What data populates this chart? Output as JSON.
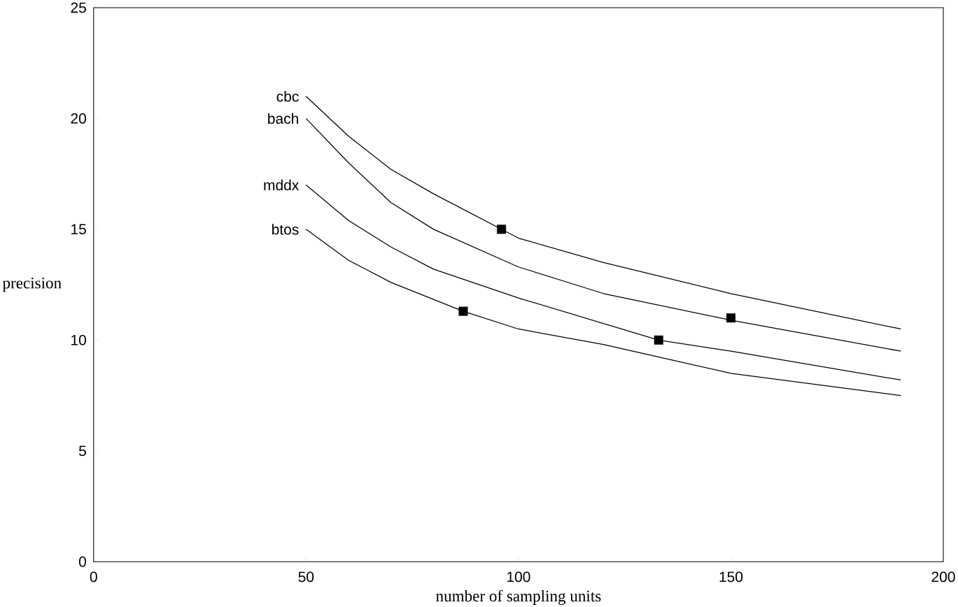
{
  "chart_data": {
    "type": "line",
    "xlabel": "number of sampling units",
    "ylabel": "precision",
    "xlim": [
      0,
      200
    ],
    "ylim": [
      0,
      25
    ],
    "xticks": [
      0,
      50,
      100,
      150,
      200
    ],
    "yticks": [
      0,
      5,
      10,
      15,
      20,
      25
    ],
    "grid": false,
    "marker": "none",
    "line_style": "solid",
    "series": [
      {
        "name": "cbc",
        "color": "#000000",
        "x": [
          50,
          60,
          70,
          80,
          100,
          120,
          150,
          190
        ],
        "values": [
          21.0,
          19.2,
          17.7,
          16.6,
          14.6,
          13.5,
          12.1,
          10.5
        ]
      },
      {
        "name": "bach",
        "color": "#000000",
        "x": [
          50,
          60,
          70,
          80,
          100,
          120,
          150,
          190
        ],
        "values": [
          20.0,
          18.0,
          16.2,
          15.0,
          13.3,
          12.1,
          10.9,
          9.5
        ]
      },
      {
        "name": "mddx",
        "color": "#000000",
        "x": [
          50,
          60,
          70,
          80,
          100,
          133,
          150,
          190
        ],
        "values": [
          17.0,
          15.4,
          14.2,
          13.2,
          11.9,
          10.0,
          9.5,
          8.2
        ]
      },
      {
        "name": "btos",
        "color": "#000000",
        "x": [
          50,
          60,
          70,
          87,
          100,
          120,
          150,
          190
        ],
        "values": [
          15.0,
          13.6,
          12.6,
          11.3,
          10.5,
          9.8,
          8.5,
          7.5
        ]
      },
      {
        "type": "scatter",
        "marker": "square",
        "color": "#000000",
        "x": [
          96,
          87,
          150,
          133
        ],
        "values": [
          15.0,
          11.3,
          11.0,
          10.0
        ]
      }
    ]
  }
}
